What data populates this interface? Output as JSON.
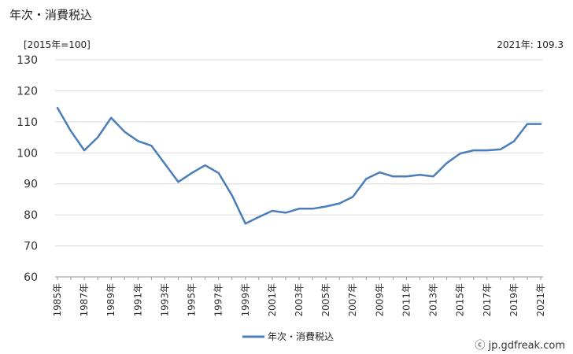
{
  "header": {
    "title": "年次・消費税込",
    "unit": "[2015年=100]",
    "latest": "2021年: 109.3"
  },
  "footer": {
    "credit": "ⓒ jp.gdfreak.com"
  },
  "colors": {
    "line": "#4a7ebb",
    "grid": "#d9d9d9",
    "axis": "#999999"
  },
  "chart_data": {
    "type": "line",
    "title": "年次・消費税込",
    "ylabel": "[2015年=100]",
    "xlabel": "",
    "ylim": [
      60,
      130
    ],
    "yticks": [
      60,
      70,
      80,
      90,
      100,
      110,
      120,
      130
    ],
    "xtick_labels": [
      "1985年",
      "1987年",
      "1989年",
      "1991年",
      "1993年",
      "1995年",
      "1997年",
      "1999年",
      "2001年",
      "2003年",
      "2005年",
      "2007年",
      "2009年",
      "2011年",
      "2013年",
      "2015年",
      "2017年",
      "2019年",
      "2021年"
    ],
    "grid": "horizontal",
    "legend": "bottom",
    "series": [
      {
        "name": "年次・消費税込",
        "x": [
          1985,
          1986,
          1987,
          1988,
          1989,
          1990,
          1991,
          1992,
          1993,
          1994,
          1995,
          1996,
          1997,
          1998,
          1999,
          2000,
          2001,
          2002,
          2003,
          2004,
          2005,
          2006,
          2007,
          2008,
          2009,
          2010,
          2011,
          2012,
          2013,
          2014,
          2015,
          2016,
          2017,
          2018,
          2019,
          2020,
          2021
        ],
        "values": [
          114.5,
          107.0,
          100.8,
          105.0,
          111.3,
          106.8,
          103.8,
          102.3,
          96.5,
          90.6,
          93.5,
          96.0,
          93.5,
          86.3,
          77.2,
          79.3,
          81.3,
          80.7,
          82.0,
          82.0,
          82.7,
          83.7,
          85.8,
          91.6,
          93.7,
          92.4,
          92.4,
          92.9,
          92.4,
          96.7,
          99.8,
          100.8,
          100.8,
          101.1,
          103.7,
          109.3,
          109.3
        ]
      }
    ]
  }
}
